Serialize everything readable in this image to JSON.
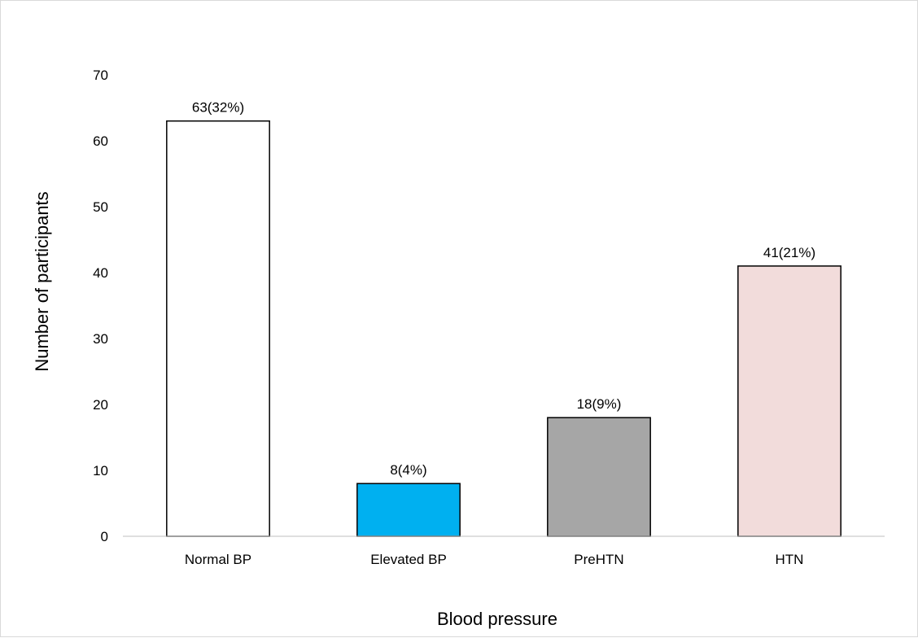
{
  "chart_data": {
    "type": "bar",
    "categories": [
      "Normal BP",
      "Elevated BP",
      "PreHTN",
      "HTN"
    ],
    "values": [
      63,
      8,
      18,
      41
    ],
    "data_labels": [
      "63(32%)",
      "8(4%)",
      "18(9%)",
      "41(21%)"
    ],
    "colors": [
      "#ffffff",
      "#00b0f0",
      "#a6a6a6",
      "#f2dcdb"
    ],
    "xlabel": "Blood pressure",
    "ylabel": "Number of participants",
    "ylim": [
      0,
      70
    ],
    "yticks": [
      "0",
      "10",
      "20",
      "30",
      "40",
      "50",
      "60",
      "70"
    ],
    "grid": false,
    "legend": "none"
  }
}
